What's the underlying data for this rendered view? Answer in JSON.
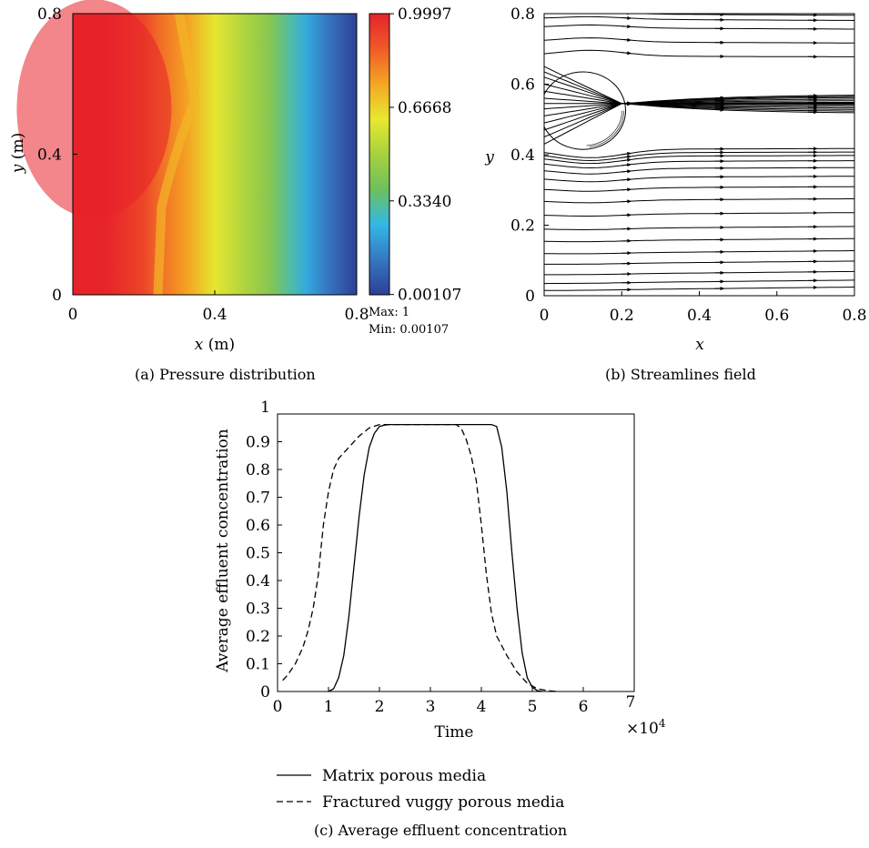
{
  "chart_data": [
    {
      "panel": "a",
      "type": "heatmap",
      "caption": "(a)  Pressure distribution",
      "xlabel_var": "x",
      "xlabel_unit": "(m)",
      "ylabel_var": "y",
      "ylabel_unit": "(m)",
      "xlim": [
        0,
        0.8
      ],
      "ylim": [
        0,
        0.8
      ],
      "xticks": [
        0,
        0.4,
        0.8
      ],
      "yticks": [
        0,
        0.4,
        0.8
      ],
      "xtick_labels": [
        "0",
        "0.4",
        "0.8"
      ],
      "ytick_labels": [
        "0",
        "0.4",
        "0.8"
      ],
      "colorbar_ticks": [
        "0.9997",
        "0.6668",
        "0.3340",
        "0.00107"
      ],
      "colorbar_tick_values": [
        0.9997,
        0.6668,
        0.334,
        0.00107
      ],
      "colormap": [
        "#2e3f96",
        "#3577c2",
        "#33b8e6",
        "#6ec05d",
        "#a7d13e",
        "#e8e830",
        "#f5a623",
        "#ef5a28",
        "#e7232a"
      ],
      "max_label": "Max: 1",
      "min_label": "Min: 0.00107",
      "field_profile": {
        "x": [
          0,
          0.1,
          0.15,
          0.2,
          0.24,
          0.32,
          0.4,
          0.48,
          0.56,
          0.62,
          0.66,
          0.72,
          0.8
        ],
        "value": [
          0.9997,
          0.995,
          0.96,
          0.92,
          0.85,
          0.76,
          0.62,
          0.52,
          0.42,
          0.3,
          0.22,
          0.12,
          0.00107
        ]
      }
    },
    {
      "panel": "b",
      "type": "line",
      "caption": "(b)  Streamlines field",
      "xlabel": "x",
      "ylabel": "y",
      "xlim": [
        0,
        0.8
      ],
      "ylim": [
        0,
        0.8
      ],
      "xticks": [
        0,
        0.2,
        0.4,
        0.6,
        0.8
      ],
      "yticks": [
        0,
        0.2,
        0.4,
        0.6,
        0.8
      ],
      "xtick_labels": [
        "0",
        "0.2",
        "0.4",
        "0.6",
        "0.8"
      ],
      "ytick_labels": [
        "0",
        "0.2",
        "0.4",
        "0.6",
        "0.8"
      ],
      "vug": {
        "center": [
          0.1,
          0.525
        ],
        "radius": 0.11
      },
      "stagnation_line_y": 0.545,
      "streamline_y_starts": [
        0.015,
        0.035,
        0.06,
        0.09,
        0.12,
        0.155,
        0.19,
        0.23,
        0.27,
        0.305,
        0.335,
        0.36,
        0.38,
        0.395,
        0.405,
        0.415,
        0.43,
        0.45,
        0.47,
        0.49,
        0.51,
        0.53,
        0.545,
        0.56,
        0.58,
        0.6,
        0.62,
        0.635,
        0.65,
        0.68,
        0.72,
        0.76,
        0.785,
        0.8
      ]
    },
    {
      "panel": "c",
      "type": "line",
      "caption": "(c)  Average effluent concentration",
      "xlabel": "Time",
      "ylabel": "Average effluent concentration",
      "x_multiplier": "×10",
      "x_multiplier_exp": "4",
      "xlim": [
        0,
        7
      ],
      "ylim": [
        0,
        1
      ],
      "xticks": [
        0,
        1,
        2,
        3,
        4,
        5,
        6,
        7
      ],
      "xtick_labels": [
        "0",
        "1",
        "2",
        "3",
        "4",
        "5",
        "6",
        "7"
      ],
      "yticks": [
        0,
        0.1,
        0.2,
        0.3,
        0.4,
        0.5,
        0.6,
        0.7,
        0.8,
        0.9,
        1
      ],
      "ytick_labels": [
        "0",
        "0.1",
        "0.2",
        "0.3",
        "0.4",
        "0.5",
        "0.6",
        "0.7",
        "0.8",
        "0.9",
        "1"
      ],
      "series": [
        {
          "name": "Matrix porous media",
          "style": "solid",
          "x": [
            1.0,
            1.1,
            1.2,
            1.3,
            1.4,
            1.5,
            1.6,
            1.7,
            1.8,
            1.9,
            2.0,
            2.1,
            2.2,
            2.3,
            4.2,
            4.3,
            4.4,
            4.5,
            4.6,
            4.7,
            4.8,
            4.9,
            5.0,
            5.1,
            5.2
          ],
          "y": [
            0.0,
            0.01,
            0.05,
            0.13,
            0.27,
            0.45,
            0.63,
            0.78,
            0.88,
            0.93,
            0.955,
            0.96,
            0.962,
            0.962,
            0.962,
            0.955,
            0.88,
            0.72,
            0.5,
            0.3,
            0.14,
            0.05,
            0.015,
            0.003,
            0.0
          ]
        },
        {
          "name": "Fractured vuggy porous media",
          "style": "dashed",
          "x": [
            0.1,
            0.2,
            0.35,
            0.5,
            0.6,
            0.7,
            0.8,
            0.9,
            1.0,
            1.1,
            1.2,
            1.4,
            1.6,
            1.8,
            2.0,
            2.1,
            3.5,
            3.6,
            3.7,
            3.8,
            3.9,
            4.0,
            4.1,
            4.2,
            4.3,
            4.5,
            4.7,
            4.9,
            5.1,
            5.3,
            5.5
          ],
          "y": [
            0.04,
            0.06,
            0.1,
            0.16,
            0.22,
            0.3,
            0.42,
            0.6,
            0.72,
            0.8,
            0.84,
            0.88,
            0.92,
            0.95,
            0.962,
            0.962,
            0.962,
            0.95,
            0.91,
            0.85,
            0.76,
            0.6,
            0.42,
            0.28,
            0.2,
            0.13,
            0.07,
            0.03,
            0.01,
            0.003,
            0.0
          ]
        }
      ]
    }
  ]
}
